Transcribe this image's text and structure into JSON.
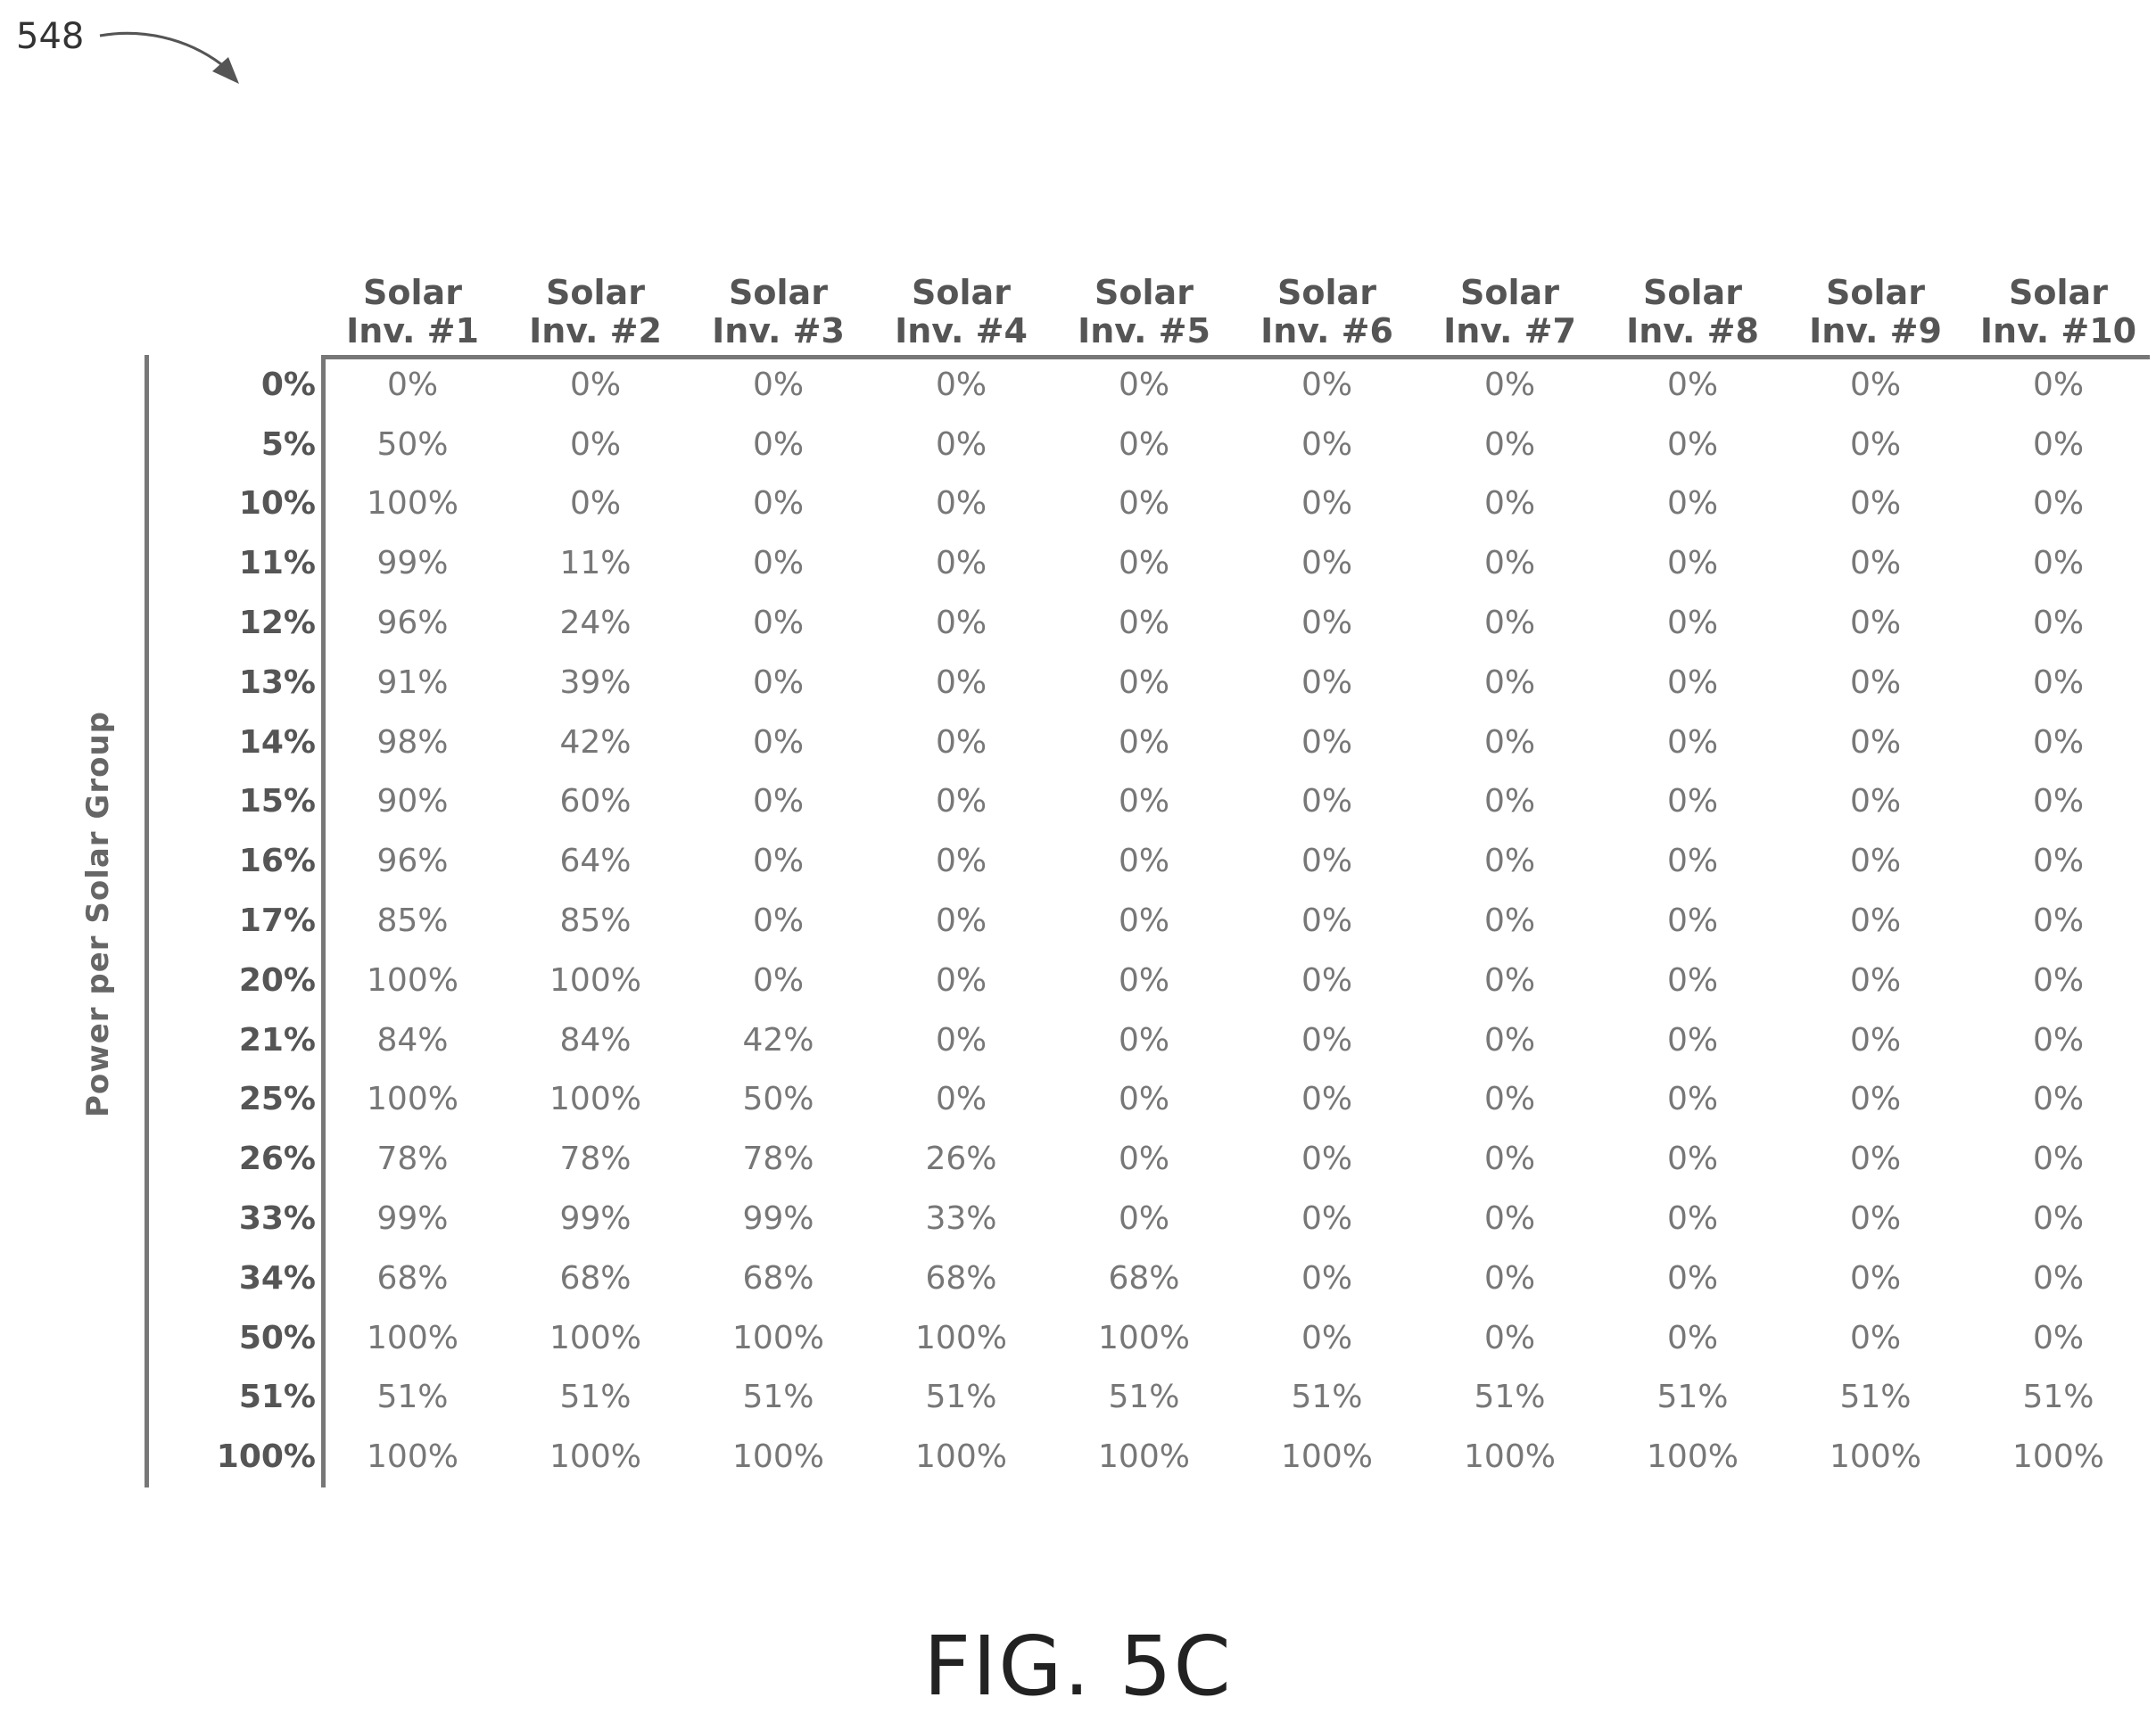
{
  "reference_number": "548",
  "figure_caption": "FIG. 5C",
  "y_axis_label": "Power per Solar Group",
  "columns": [
    [
      "Solar",
      "Inv. #1"
    ],
    [
      "Solar",
      "Inv. #2"
    ],
    [
      "Solar",
      "Inv. #3"
    ],
    [
      "Solar",
      "Inv. #4"
    ],
    [
      "Solar",
      "Inv. #5"
    ],
    [
      "Solar",
      "Inv. #6"
    ],
    [
      "Solar",
      "Inv. #7"
    ],
    [
      "Solar",
      "Inv. #8"
    ],
    [
      "Solar",
      "Inv. #9"
    ],
    [
      "Solar",
      "Inv. #10"
    ]
  ],
  "rows": [
    {
      "label": "0%",
      "values": [
        "0%",
        "0%",
        "0%",
        "0%",
        "0%",
        "0%",
        "0%",
        "0%",
        "0%",
        "0%"
      ]
    },
    {
      "label": "5%",
      "values": [
        "50%",
        "0%",
        "0%",
        "0%",
        "0%",
        "0%",
        "0%",
        "0%",
        "0%",
        "0%"
      ]
    },
    {
      "label": "10%",
      "values": [
        "100%",
        "0%",
        "0%",
        "0%",
        "0%",
        "0%",
        "0%",
        "0%",
        "0%",
        "0%"
      ]
    },
    {
      "label": "11%",
      "values": [
        "99%",
        "11%",
        "0%",
        "0%",
        "0%",
        "0%",
        "0%",
        "0%",
        "0%",
        "0%"
      ]
    },
    {
      "label": "12%",
      "values": [
        "96%",
        "24%",
        "0%",
        "0%",
        "0%",
        "0%",
        "0%",
        "0%",
        "0%",
        "0%"
      ]
    },
    {
      "label": "13%",
      "values": [
        "91%",
        "39%",
        "0%",
        "0%",
        "0%",
        "0%",
        "0%",
        "0%",
        "0%",
        "0%"
      ]
    },
    {
      "label": "14%",
      "values": [
        "98%",
        "42%",
        "0%",
        "0%",
        "0%",
        "0%",
        "0%",
        "0%",
        "0%",
        "0%"
      ]
    },
    {
      "label": "15%",
      "values": [
        "90%",
        "60%",
        "0%",
        "0%",
        "0%",
        "0%",
        "0%",
        "0%",
        "0%",
        "0%"
      ]
    },
    {
      "label": "16%",
      "values": [
        "96%",
        "64%",
        "0%",
        "0%",
        "0%",
        "0%",
        "0%",
        "0%",
        "0%",
        "0%"
      ]
    },
    {
      "label": "17%",
      "values": [
        "85%",
        "85%",
        "0%",
        "0%",
        "0%",
        "0%",
        "0%",
        "0%",
        "0%",
        "0%"
      ]
    },
    {
      "label": "20%",
      "values": [
        "100%",
        "100%",
        "0%",
        "0%",
        "0%",
        "0%",
        "0%",
        "0%",
        "0%",
        "0%"
      ]
    },
    {
      "label": "21%",
      "values": [
        "84%",
        "84%",
        "42%",
        "0%",
        "0%",
        "0%",
        "0%",
        "0%",
        "0%",
        "0%"
      ]
    },
    {
      "label": "25%",
      "values": [
        "100%",
        "100%",
        "50%",
        "0%",
        "0%",
        "0%",
        "0%",
        "0%",
        "0%",
        "0%"
      ]
    },
    {
      "label": "26%",
      "values": [
        "78%",
        "78%",
        "78%",
        "26%",
        "0%",
        "0%",
        "0%",
        "0%",
        "0%",
        "0%"
      ]
    },
    {
      "label": "33%",
      "values": [
        "99%",
        "99%",
        "99%",
        "33%",
        "0%",
        "0%",
        "0%",
        "0%",
        "0%",
        "0%"
      ]
    },
    {
      "label": "34%",
      "values": [
        "68%",
        "68%",
        "68%",
        "68%",
        "68%",
        "0%",
        "0%",
        "0%",
        "0%",
        "0%"
      ]
    },
    {
      "label": "50%",
      "values": [
        "100%",
        "100%",
        "100%",
        "100%",
        "100%",
        "0%",
        "0%",
        "0%",
        "0%",
        "0%"
      ]
    },
    {
      "label": "51%",
      "values": [
        "51%",
        "51%",
        "51%",
        "51%",
        "51%",
        "51%",
        "51%",
        "51%",
        "51%",
        "51%"
      ]
    },
    {
      "label": "100%",
      "values": [
        "100%",
        "100%",
        "100%",
        "100%",
        "100%",
        "100%",
        "100%",
        "100%",
        "100%",
        "100%"
      ]
    }
  ]
}
